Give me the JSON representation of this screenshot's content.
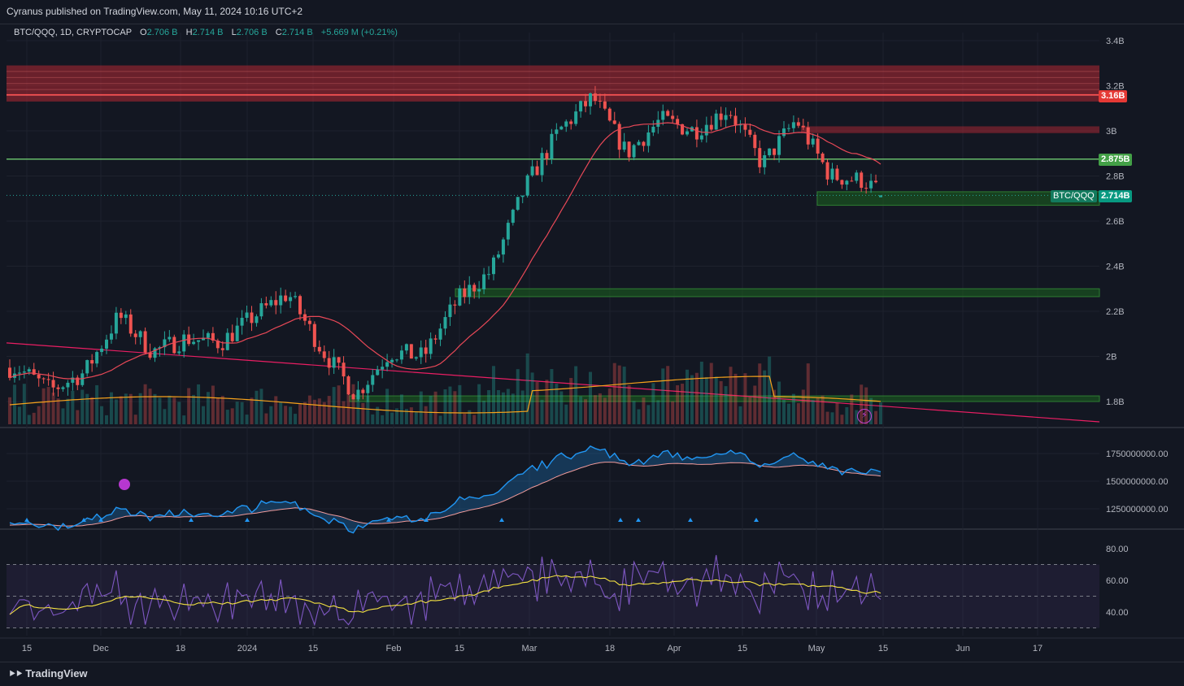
{
  "header": {
    "published": "Cyranus published on TradingView.com, May 11, 2024 10:16 UTC+2"
  },
  "legend": {
    "symbol": "BTC/QQQ, 1D, CRYPTOCAP",
    "o_label": "O",
    "o_value": "2.706 B",
    "h_label": "H",
    "h_value": "2.714 B",
    "l_label": "L",
    "l_value": "2.706 B",
    "c_label": "C",
    "c_value": "2.714 B",
    "change": "+5.669 M (+0.21%)"
  },
  "price_tags": {
    "red_level": "3.16B",
    "green_level": "2.875B",
    "symbol": "BTC/QQQ",
    "last": "2.714B"
  },
  "footer": {
    "brand": "TradingView"
  },
  "colors": {
    "background": "#131722",
    "up": "#26a69a",
    "down": "#ef5350",
    "resistance_zone": "#b22833",
    "support_zone": "#1b5e20",
    "ma_line": "#e84857",
    "trend_line": "#e91e63",
    "volume_ma": "#f7a21b",
    "osc_up": "#2196f3",
    "osc_down": "#e040fb",
    "rsi": "#7e57c2",
    "rsi_ma": "#f5e342"
  },
  "chart_data": [
    {
      "type": "candlestick",
      "title": "BTC/QQQ, 1D, CRYPTOCAP",
      "ylim": [
        1.7,
        3.45
      ],
      "y_unit": "B",
      "y_ticks": [
        "3.4B",
        "3.2B",
        "3B",
        "2.8B",
        "2.6B",
        "2.4B",
        "2.2B",
        "2B",
        "1.8B"
      ],
      "x_ticks": [
        "15",
        "Dec",
        "18",
        "2024",
        "15",
        "Feb",
        "15",
        "Mar",
        "18",
        "Apr",
        "15",
        "May",
        "15",
        "Jun",
        "17"
      ],
      "close_path": [
        [
          "2023-11-13",
          1.95
        ],
        [
          "2023-11-20",
          1.85
        ],
        [
          "2023-11-27",
          1.93
        ],
        [
          "2023-12-04",
          2.18
        ],
        [
          "2023-12-11",
          2.02
        ],
        [
          "2023-12-18",
          2.08
        ],
        [
          "2023-12-25",
          2.06
        ],
        [
          "2024-01-01",
          2.18
        ],
        [
          "2024-01-08",
          2.28
        ],
        [
          "2024-01-15",
          2.03
        ],
        [
          "2024-01-22",
          1.83
        ],
        [
          "2024-01-29",
          2.02
        ],
        [
          "2024-02-05",
          2.0
        ],
        [
          "2024-02-12",
          2.25
        ],
        [
          "2024-02-19",
          2.38
        ],
        [
          "2024-02-26",
          2.75
        ],
        [
          "2024-03-04",
          3.0
        ],
        [
          "2024-03-11",
          3.15
        ],
        [
          "2024-03-18",
          2.9
        ],
        [
          "2024-03-25",
          3.05
        ],
        [
          "2024-04-01",
          3.0
        ],
        [
          "2024-04-08",
          3.1
        ],
        [
          "2024-04-15",
          2.85
        ],
        [
          "2024-04-22",
          3.05
        ],
        [
          "2024-04-29",
          2.8
        ],
        [
          "2024-05-06",
          2.78
        ],
        [
          "2024-05-10",
          2.714
        ]
      ],
      "zones": [
        {
          "kind": "resistance",
          "from": 3.13,
          "to": 3.29
        },
        {
          "kind": "resistance-line",
          "level": 3.16
        },
        {
          "kind": "resistance-thin",
          "from": 2.99,
          "to": 3.02
        },
        {
          "kind": "support-line",
          "level": 2.875
        },
        {
          "kind": "support",
          "from": 2.67,
          "to": 2.73
        },
        {
          "kind": "support",
          "from": 2.265,
          "to": 2.3
        },
        {
          "kind": "support",
          "from": 1.8,
          "to": 1.825
        }
      ]
    },
    {
      "type": "area",
      "title": "",
      "ylim": [
        1100000000,
        1950000000
      ],
      "y_ticks": [
        "1750000000.00",
        "1500000000.00",
        "1250000000.00"
      ]
    },
    {
      "type": "line",
      "title": "",
      "ylim": [
        30,
        85
      ],
      "y_ticks": [
        "80.00",
        "60.00",
        "40.00"
      ],
      "bands": [
        70,
        50,
        30
      ]
    }
  ]
}
